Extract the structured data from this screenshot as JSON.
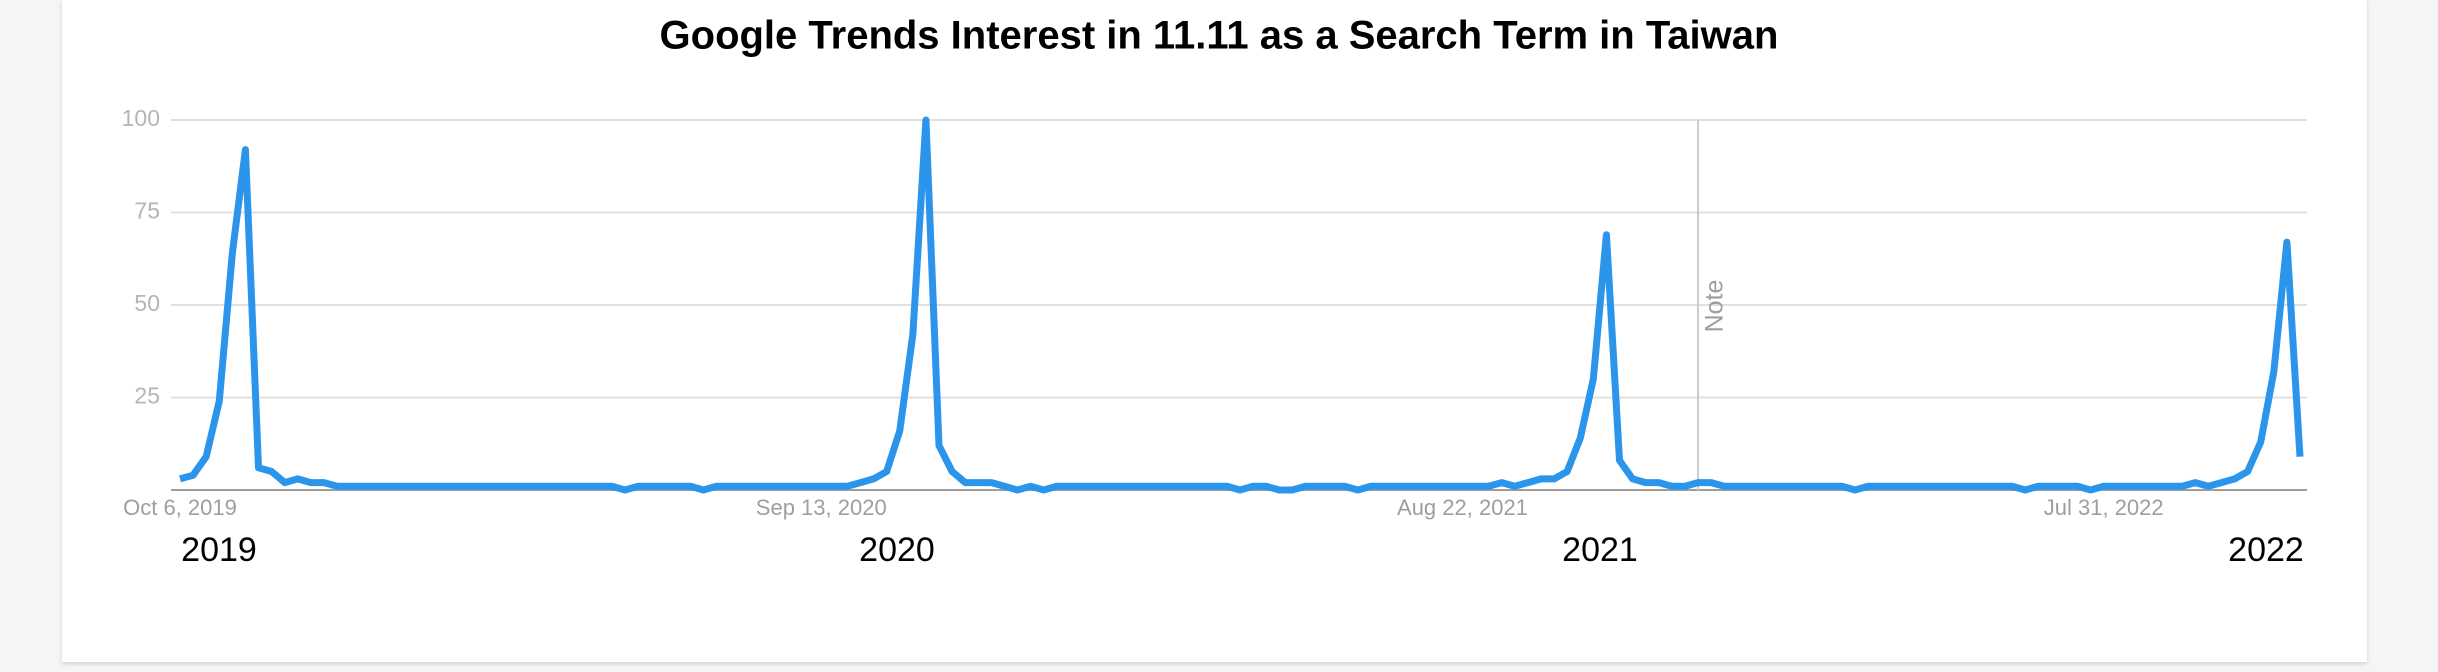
{
  "chart_data": {
    "type": "line",
    "title": "Google Trends Interest in 11.11 as a Search Term in Taiwan",
    "categories": [
      "Oct 6, 2019",
      null,
      null,
      null,
      null,
      null,
      null,
      null,
      null,
      null,
      null,
      null,
      null,
      null,
      null,
      null,
      null,
      null,
      null,
      null,
      null,
      null,
      null,
      null,
      null,
      null,
      null,
      null,
      null,
      null,
      null,
      null,
      null,
      null,
      null,
      null,
      null,
      null,
      null,
      null,
      null,
      null,
      null,
      null,
      null,
      null,
      null,
      null,
      null,
      "Sep 13, 2020",
      null,
      null,
      null,
      null,
      null,
      null,
      null,
      null,
      null,
      null,
      null,
      null,
      null,
      null,
      null,
      null,
      null,
      null,
      null,
      null,
      null,
      null,
      null,
      null,
      null,
      null,
      null,
      null,
      null,
      null,
      null,
      null,
      null,
      null,
      null,
      null,
      null,
      null,
      null,
      null,
      null,
      null,
      null,
      null,
      null,
      null,
      null,
      null,
      "Aug 22, 2021",
      null,
      null,
      null,
      null,
      null,
      null,
      null,
      null,
      null,
      null,
      null,
      null,
      null,
      null,
      null,
      null,
      null,
      null,
      null,
      null,
      null,
      null,
      null,
      null,
      null,
      null,
      null,
      null,
      null,
      null,
      null,
      null,
      null,
      null,
      null,
      null,
      null,
      null,
      null,
      null,
      null,
      null,
      null,
      null,
      null,
      null,
      null,
      null,
      "Jul 31, 2022",
      null,
      null,
      null,
      null,
      null,
      null,
      null,
      null,
      null,
      null,
      null,
      null,
      null,
      null,
      null
    ],
    "series": [
      {
        "name": "11.11",
        "color": "#2b95eb",
        "values": [
          3,
          4,
          9,
          24,
          64,
          92,
          6,
          5,
          2,
          3,
          2,
          2,
          1,
          1,
          1,
          1,
          1,
          1,
          1,
          1,
          1,
          1,
          1,
          1,
          1,
          1,
          1,
          1,
          1,
          1,
          1,
          1,
          1,
          1,
          0,
          1,
          1,
          1,
          1,
          1,
          0,
          1,
          1,
          1,
          1,
          1,
          1,
          1,
          1,
          1,
          1,
          1,
          2,
          3,
          5,
          16,
          42,
          100,
          12,
          5,
          2,
          2,
          2,
          1,
          0,
          1,
          0,
          1,
          1,
          1,
          1,
          1,
          1,
          1,
          1,
          1,
          1,
          1,
          1,
          1,
          1,
          0,
          1,
          1,
          0,
          0,
          1,
          1,
          1,
          1,
          0,
          1,
          1,
          1,
          1,
          1,
          1,
          1,
          1,
          1,
          1,
          2,
          1,
          2,
          3,
          3,
          5,
          14,
          30,
          69,
          8,
          3,
          2,
          2,
          1,
          1,
          2,
          2,
          1,
          1,
          1,
          1,
          1,
          1,
          1,
          1,
          1,
          1,
          0,
          1,
          1,
          1,
          1,
          1,
          1,
          1,
          1,
          1,
          1,
          1,
          1,
          0,
          1,
          1,
          1,
          1,
          0,
          1,
          1,
          1,
          1,
          1,
          1,
          1,
          2,
          1,
          2,
          3,
          5,
          13,
          32,
          67,
          9
        ]
      }
    ],
    "ylim": [
      0,
      100
    ],
    "yticks": [
      25,
      50,
      75,
      100
    ],
    "grid": true,
    "note": "Note",
    "year_labels": [
      "2019",
      "2020",
      "2021",
      "2022"
    ]
  }
}
